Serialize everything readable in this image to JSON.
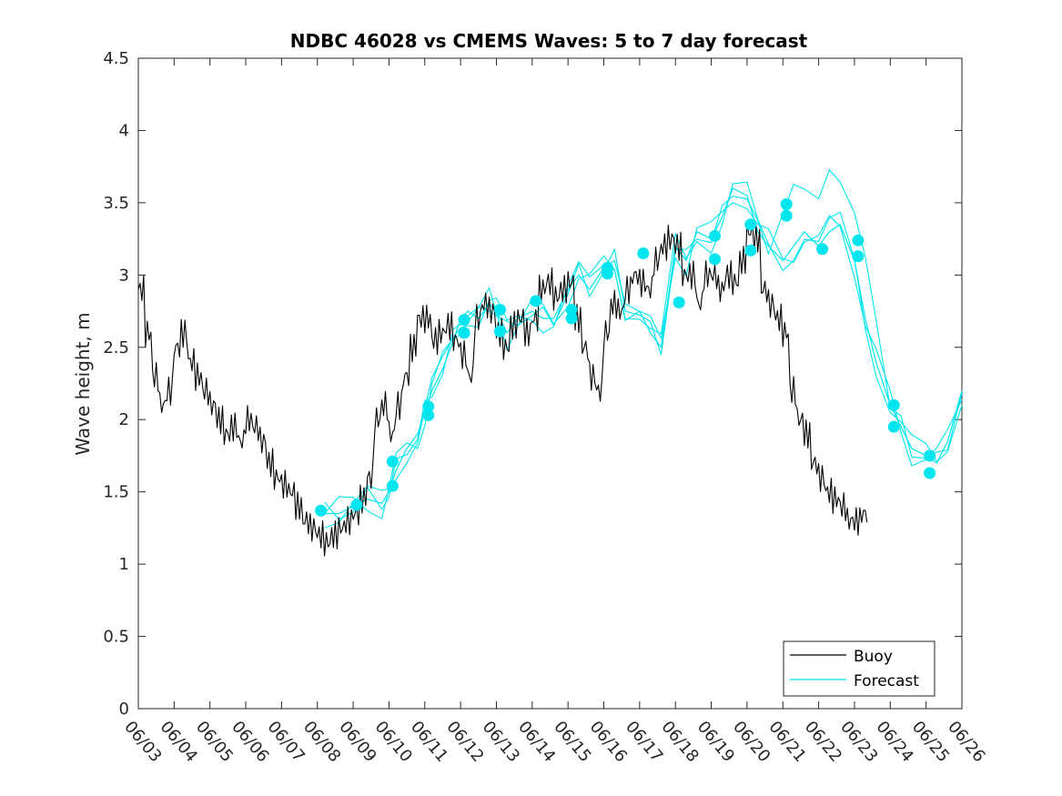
{
  "chart_data": {
    "type": "line",
    "title": "NDBC 46028 vs CMEMS Waves: 5 to 7 day forecast",
    "xlabel": "",
    "ylabel": "Wave height, m",
    "x_tick_labels": [
      "06/03",
      "06/04",
      "06/05",
      "06/06",
      "06/07",
      "06/08",
      "06/09",
      "06/10",
      "06/11",
      "06/12",
      "06/13",
      "06/14",
      "06/15",
      "06/16",
      "06/17",
      "06/18",
      "06/19",
      "06/20",
      "06/21",
      "06/22",
      "06/23",
      "06/24",
      "06/25",
      "06/26"
    ],
    "xlim": [
      0,
      23
    ],
    "ylim": [
      0,
      4.5
    ],
    "y_ticks": [
      0,
      0.5,
      1,
      1.5,
      2,
      2.5,
      3,
      3.5,
      4,
      4.5
    ],
    "y_tick_labels": [
      "0",
      "0.5",
      "1",
      "1.5",
      "2",
      "2.5",
      "3",
      "3.5",
      "4",
      "4.5"
    ],
    "grid": false,
    "legend": {
      "position": "bottom-right",
      "entries": [
        "Buoy",
        "Forecast"
      ]
    },
    "colors": {
      "buoy": "#000000",
      "forecast": "#00e5ee"
    },
    "series": [
      {
        "name": "Buoy",
        "x_days_since_0603": [
          0,
          0.2,
          0.4,
          0.6,
          0.8,
          1,
          1.2,
          1.4,
          1.6,
          1.8,
          2,
          2.2,
          2.4,
          2.6,
          2.8,
          3,
          3.2,
          3.4,
          3.6,
          3.8,
          4,
          4.2,
          4.4,
          4.6,
          4.8,
          5,
          5.2,
          5.4,
          5.6,
          5.8,
          6,
          6.2,
          6.4,
          6.6,
          6.8,
          7,
          7.2,
          7.4,
          7.6,
          7.8,
          8,
          8.2,
          8.4,
          8.6,
          8.8,
          9,
          9.2,
          9.4,
          9.6,
          9.8,
          10,
          10.2,
          10.4,
          10.6,
          10.8,
          11,
          11.2,
          11.4,
          11.6,
          11.8,
          12,
          12.2,
          12.4,
          12.6,
          12.8,
          13,
          13.2,
          13.4,
          13.6,
          13.8,
          14,
          14.2,
          14.4,
          14.6,
          14.8,
          15,
          15.2,
          15.4,
          15.6,
          15.8,
          16,
          16.2,
          16.4,
          16.6,
          16.8,
          17,
          17.2,
          17.4,
          17.6,
          17.8,
          18,
          18.2,
          18.4,
          18.6,
          18.8,
          19,
          19.2,
          19.4,
          19.6,
          19.8,
          20,
          20.2,
          20.4,
          20.6,
          20.8,
          21,
          21.2,
          21.4,
          21.6,
          21.8,
          22,
          22.2
        ],
        "values": [
          2.9,
          2.6,
          2.3,
          2.1,
          2.2,
          2.5,
          2.6,
          2.4,
          2.3,
          2.2,
          2.1,
          2.0,
          1.9,
          1.95,
          1.85,
          2.0,
          1.95,
          1.85,
          1.7,
          1.6,
          1.55,
          1.5,
          1.4,
          1.3,
          1.25,
          1.2,
          1.15,
          1.2,
          1.25,
          1.3,
          1.35,
          1.45,
          1.6,
          2.0,
          2.1,
          1.9,
          2.1,
          2.3,
          2.5,
          2.7,
          2.7,
          2.55,
          2.6,
          2.65,
          2.55,
          2.45,
          2.3,
          2.7,
          2.8,
          2.75,
          2.6,
          2.5,
          2.65,
          2.7,
          2.6,
          2.7,
          2.9,
          2.95,
          2.85,
          2.9,
          2.95,
          2.7,
          2.5,
          2.3,
          2.2,
          2.6,
          2.8,
          2.75,
          2.9,
          3.0,
          2.95,
          2.9,
          3.1,
          3.2,
          3.25,
          3.2,
          3.0,
          3.0,
          2.8,
          3.0,
          3.0,
          2.9,
          3.0,
          2.95,
          3.1,
          3.3,
          3.25,
          2.9,
          2.8,
          2.7,
          2.6,
          2.2,
          2.0,
          1.9,
          1.7,
          1.6,
          1.5,
          1.45,
          1.4,
          1.3,
          1.3,
          1.35
        ]
      },
      {
        "name": "Forecast",
        "x_days_since_0603": [
          5.2,
          5.6,
          6.0,
          6.4,
          6.8,
          7.0,
          7.2,
          7.5,
          7.8,
          8.0,
          8.2,
          8.5,
          8.8,
          9.0,
          9.2,
          9.5,
          9.8,
          10.0,
          10.3,
          10.6,
          11.0,
          11.3,
          11.6,
          12.0,
          12.3,
          12.6,
          13.0,
          13.3,
          13.6,
          14.0,
          14.3,
          14.6,
          15.0,
          15.3,
          15.6,
          16.0,
          16.3,
          16.6,
          17.0,
          17.3,
          17.6,
          18.0,
          18.3,
          18.6,
          19.0,
          19.3,
          19.6,
          20.0,
          20.3,
          20.6,
          21.0,
          21.3,
          21.6,
          22.0,
          22.3,
          22.6,
          23.0
        ],
        "values": [
          1.35,
          1.35,
          1.4,
          1.45,
          1.42,
          1.5,
          1.65,
          1.8,
          1.9,
          2.05,
          2.2,
          2.35,
          2.55,
          2.7,
          2.75,
          2.7,
          2.8,
          2.75,
          2.6,
          2.7,
          2.75,
          2.7,
          2.7,
          2.9,
          3.0,
          2.9,
          3.05,
          3.1,
          2.8,
          2.75,
          2.6,
          2.5,
          3.2,
          3.1,
          3.3,
          3.25,
          3.4,
          3.6,
          3.55,
          3.3,
          3.2,
          3.1,
          3.2,
          3.3,
          3.2,
          3.3,
          3.35,
          3.1,
          2.7,
          2.4,
          2.1,
          1.95,
          1.8,
          1.75,
          1.7,
          1.85,
          2.2
        ]
      }
    ],
    "forecast_markers": {
      "x_days_since_0603": [
        5.1,
        6.1,
        7.1,
        7.1,
        8.1,
        8.1,
        9.1,
        9.1,
        10.1,
        10.1,
        11.1,
        12.1,
        12.1,
        13.1,
        13.1,
        14.1,
        15.1,
        16.1,
        16.1,
        17.1,
        17.1,
        18.1,
        18.1,
        19.1,
        20.1,
        20.1,
        21.1,
        21.1,
        22.1,
        22.1
      ],
      "values": [
        1.37,
        1.41,
        1.54,
        1.71,
        2.03,
        2.09,
        2.6,
        2.69,
        2.61,
        2.76,
        2.82,
        2.7,
        2.76,
        3.01,
        3.05,
        3.15,
        2.81,
        3.11,
        3.27,
        3.17,
        3.35,
        3.41,
        3.49,
        3.18,
        3.13,
        3.24,
        1.95,
        2.1,
        1.63,
        1.75
      ]
    }
  }
}
